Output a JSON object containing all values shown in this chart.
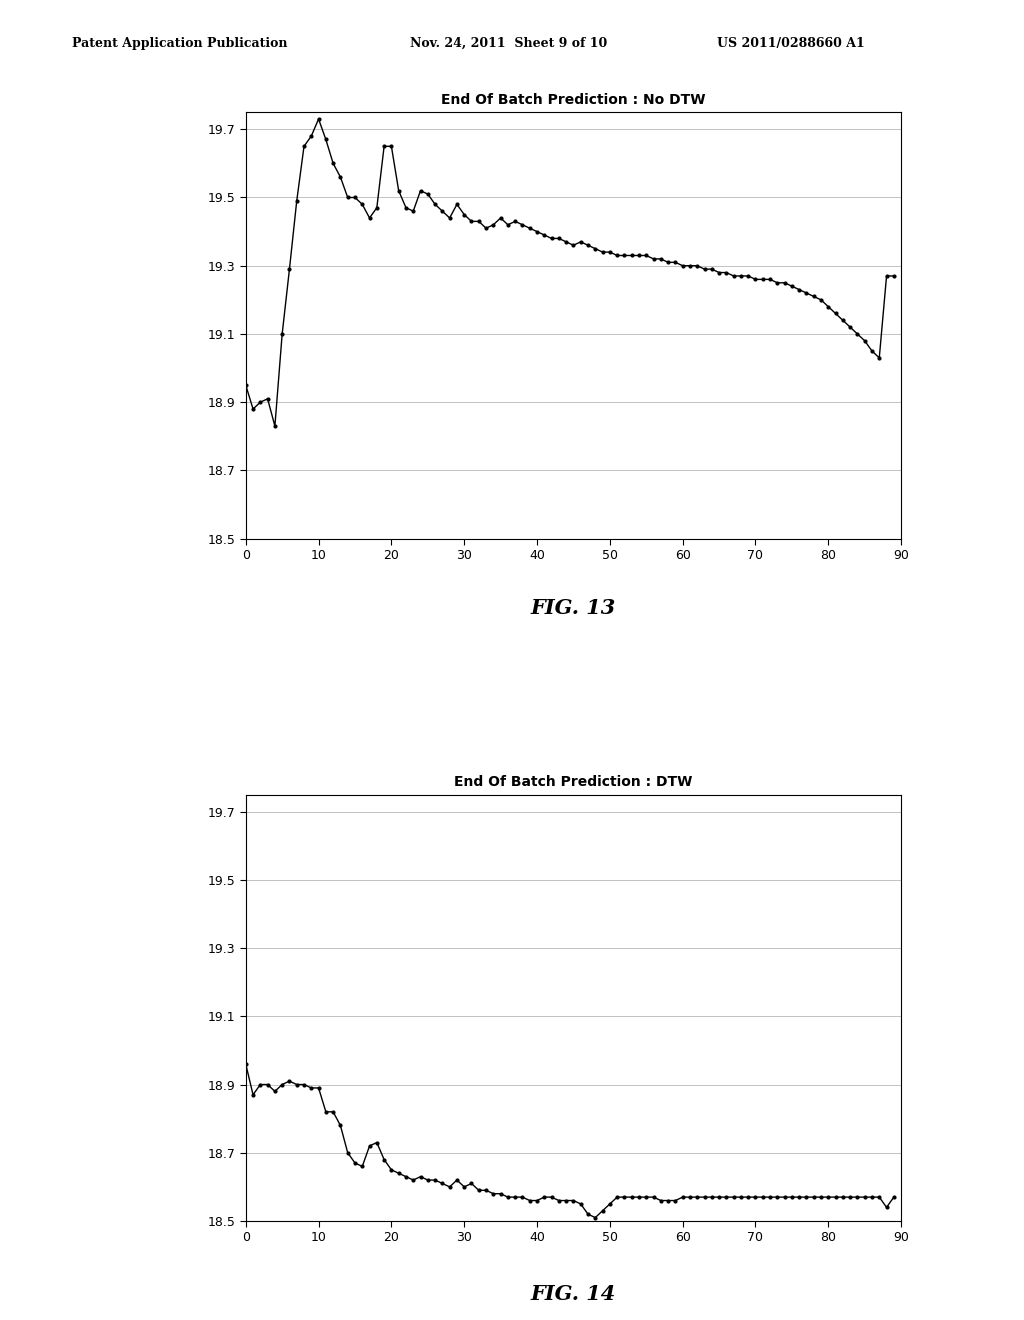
{
  "fig13_title": "End Of Batch Prediction : No DTW",
  "fig14_title": "End Of Batch Prediction : DTW",
  "fig13_label": "FIG. 13",
  "fig14_label": "FIG. 14",
  "header_left": "Patent Application Publication",
  "header_mid": "Nov. 24, 2011  Sheet 9 of 10",
  "header_right": "US 2011/0288660 A1",
  "xlim": [
    0,
    90
  ],
  "ylim": [
    18.5,
    19.75
  ],
  "xticks": [
    0,
    10,
    20,
    30,
    40,
    50,
    60,
    70,
    80,
    90
  ],
  "yticks": [
    18.5,
    18.7,
    18.9,
    19.1,
    19.3,
    19.5,
    19.7
  ],
  "fig13_x": [
    0,
    1,
    2,
    3,
    4,
    5,
    6,
    7,
    8,
    9,
    10,
    11,
    12,
    13,
    14,
    15,
    16,
    17,
    18,
    19,
    20,
    21,
    22,
    23,
    24,
    25,
    26,
    27,
    28,
    29,
    30,
    31,
    32,
    33,
    34,
    35,
    36,
    37,
    38,
    39,
    40,
    41,
    42,
    43,
    44,
    45,
    46,
    47,
    48,
    49,
    50,
    51,
    52,
    53,
    54,
    55,
    56,
    57,
    58,
    59,
    60,
    61,
    62,
    63,
    64,
    65,
    66,
    67,
    68,
    69,
    70,
    71,
    72,
    73,
    74,
    75,
    76,
    77,
    78,
    79,
    80,
    81,
    82,
    83,
    84,
    85,
    86,
    87,
    88,
    89
  ],
  "fig13_y": [
    18.95,
    18.88,
    18.9,
    18.91,
    18.83,
    19.1,
    19.29,
    19.49,
    19.65,
    19.68,
    19.73,
    19.67,
    19.6,
    19.56,
    19.5,
    19.5,
    19.48,
    19.44,
    19.47,
    19.65,
    19.65,
    19.52,
    19.47,
    19.46,
    19.52,
    19.51,
    19.48,
    19.46,
    19.44,
    19.48,
    19.45,
    19.43,
    19.43,
    19.41,
    19.42,
    19.44,
    19.42,
    19.43,
    19.42,
    19.41,
    19.4,
    19.39,
    19.38,
    19.38,
    19.37,
    19.36,
    19.37,
    19.36,
    19.35,
    19.34,
    19.34,
    19.33,
    19.33,
    19.33,
    19.33,
    19.33,
    19.32,
    19.32,
    19.31,
    19.31,
    19.3,
    19.3,
    19.3,
    19.29,
    19.29,
    19.28,
    19.28,
    19.27,
    19.27,
    19.27,
    19.26,
    19.26,
    19.26,
    19.25,
    19.25,
    19.24,
    19.23,
    19.22,
    19.21,
    19.2,
    19.18,
    19.16,
    19.14,
    19.12,
    19.1,
    19.08,
    19.05,
    19.03,
    19.27,
    19.27
  ],
  "fig14_x": [
    0,
    1,
    2,
    3,
    4,
    5,
    6,
    7,
    8,
    9,
    10,
    11,
    12,
    13,
    14,
    15,
    16,
    17,
    18,
    19,
    20,
    21,
    22,
    23,
    24,
    25,
    26,
    27,
    28,
    29,
    30,
    31,
    32,
    33,
    34,
    35,
    36,
    37,
    38,
    39,
    40,
    41,
    42,
    43,
    44,
    45,
    46,
    47,
    48,
    49,
    50,
    51,
    52,
    53,
    54,
    55,
    56,
    57,
    58,
    59,
    60,
    61,
    62,
    63,
    64,
    65,
    66,
    67,
    68,
    69,
    70,
    71,
    72,
    73,
    74,
    75,
    76,
    77,
    78,
    79,
    80,
    81,
    82,
    83,
    84,
    85,
    86,
    87,
    88,
    89
  ],
  "fig14_y": [
    18.96,
    18.87,
    18.9,
    18.9,
    18.88,
    18.9,
    18.91,
    18.9,
    18.9,
    18.89,
    18.89,
    18.82,
    18.82,
    18.78,
    18.7,
    18.67,
    18.66,
    18.72,
    18.73,
    18.68,
    18.65,
    18.64,
    18.63,
    18.62,
    18.63,
    18.62,
    18.62,
    18.61,
    18.6,
    18.62,
    18.6,
    18.61,
    18.59,
    18.59,
    18.58,
    18.58,
    18.57,
    18.57,
    18.57,
    18.56,
    18.56,
    18.57,
    18.57,
    18.56,
    18.56,
    18.56,
    18.55,
    18.52,
    18.51,
    18.53,
    18.55,
    18.57,
    18.57,
    18.57,
    18.57,
    18.57,
    18.57,
    18.56,
    18.56,
    18.56,
    18.57,
    18.57,
    18.57,
    18.57,
    18.57,
    18.57,
    18.57,
    18.57,
    18.57,
    18.57,
    18.57,
    18.57,
    18.57,
    18.57,
    18.57,
    18.57,
    18.57,
    18.57,
    18.57,
    18.57,
    18.57,
    18.57,
    18.57,
    18.57,
    18.57,
    18.57,
    18.57,
    18.57,
    18.54,
    18.57
  ],
  "line_color": "#000000",
  "marker": ".",
  "markersize": 4,
  "linewidth": 1.0,
  "background_color": "#ffffff",
  "grid_color": "#aaaaaa",
  "grid_linewidth": 0.5,
  "title_fontsize": 10,
  "tick_fontsize": 9,
  "label_fontsize": 15,
  "header_fontsize": 9
}
